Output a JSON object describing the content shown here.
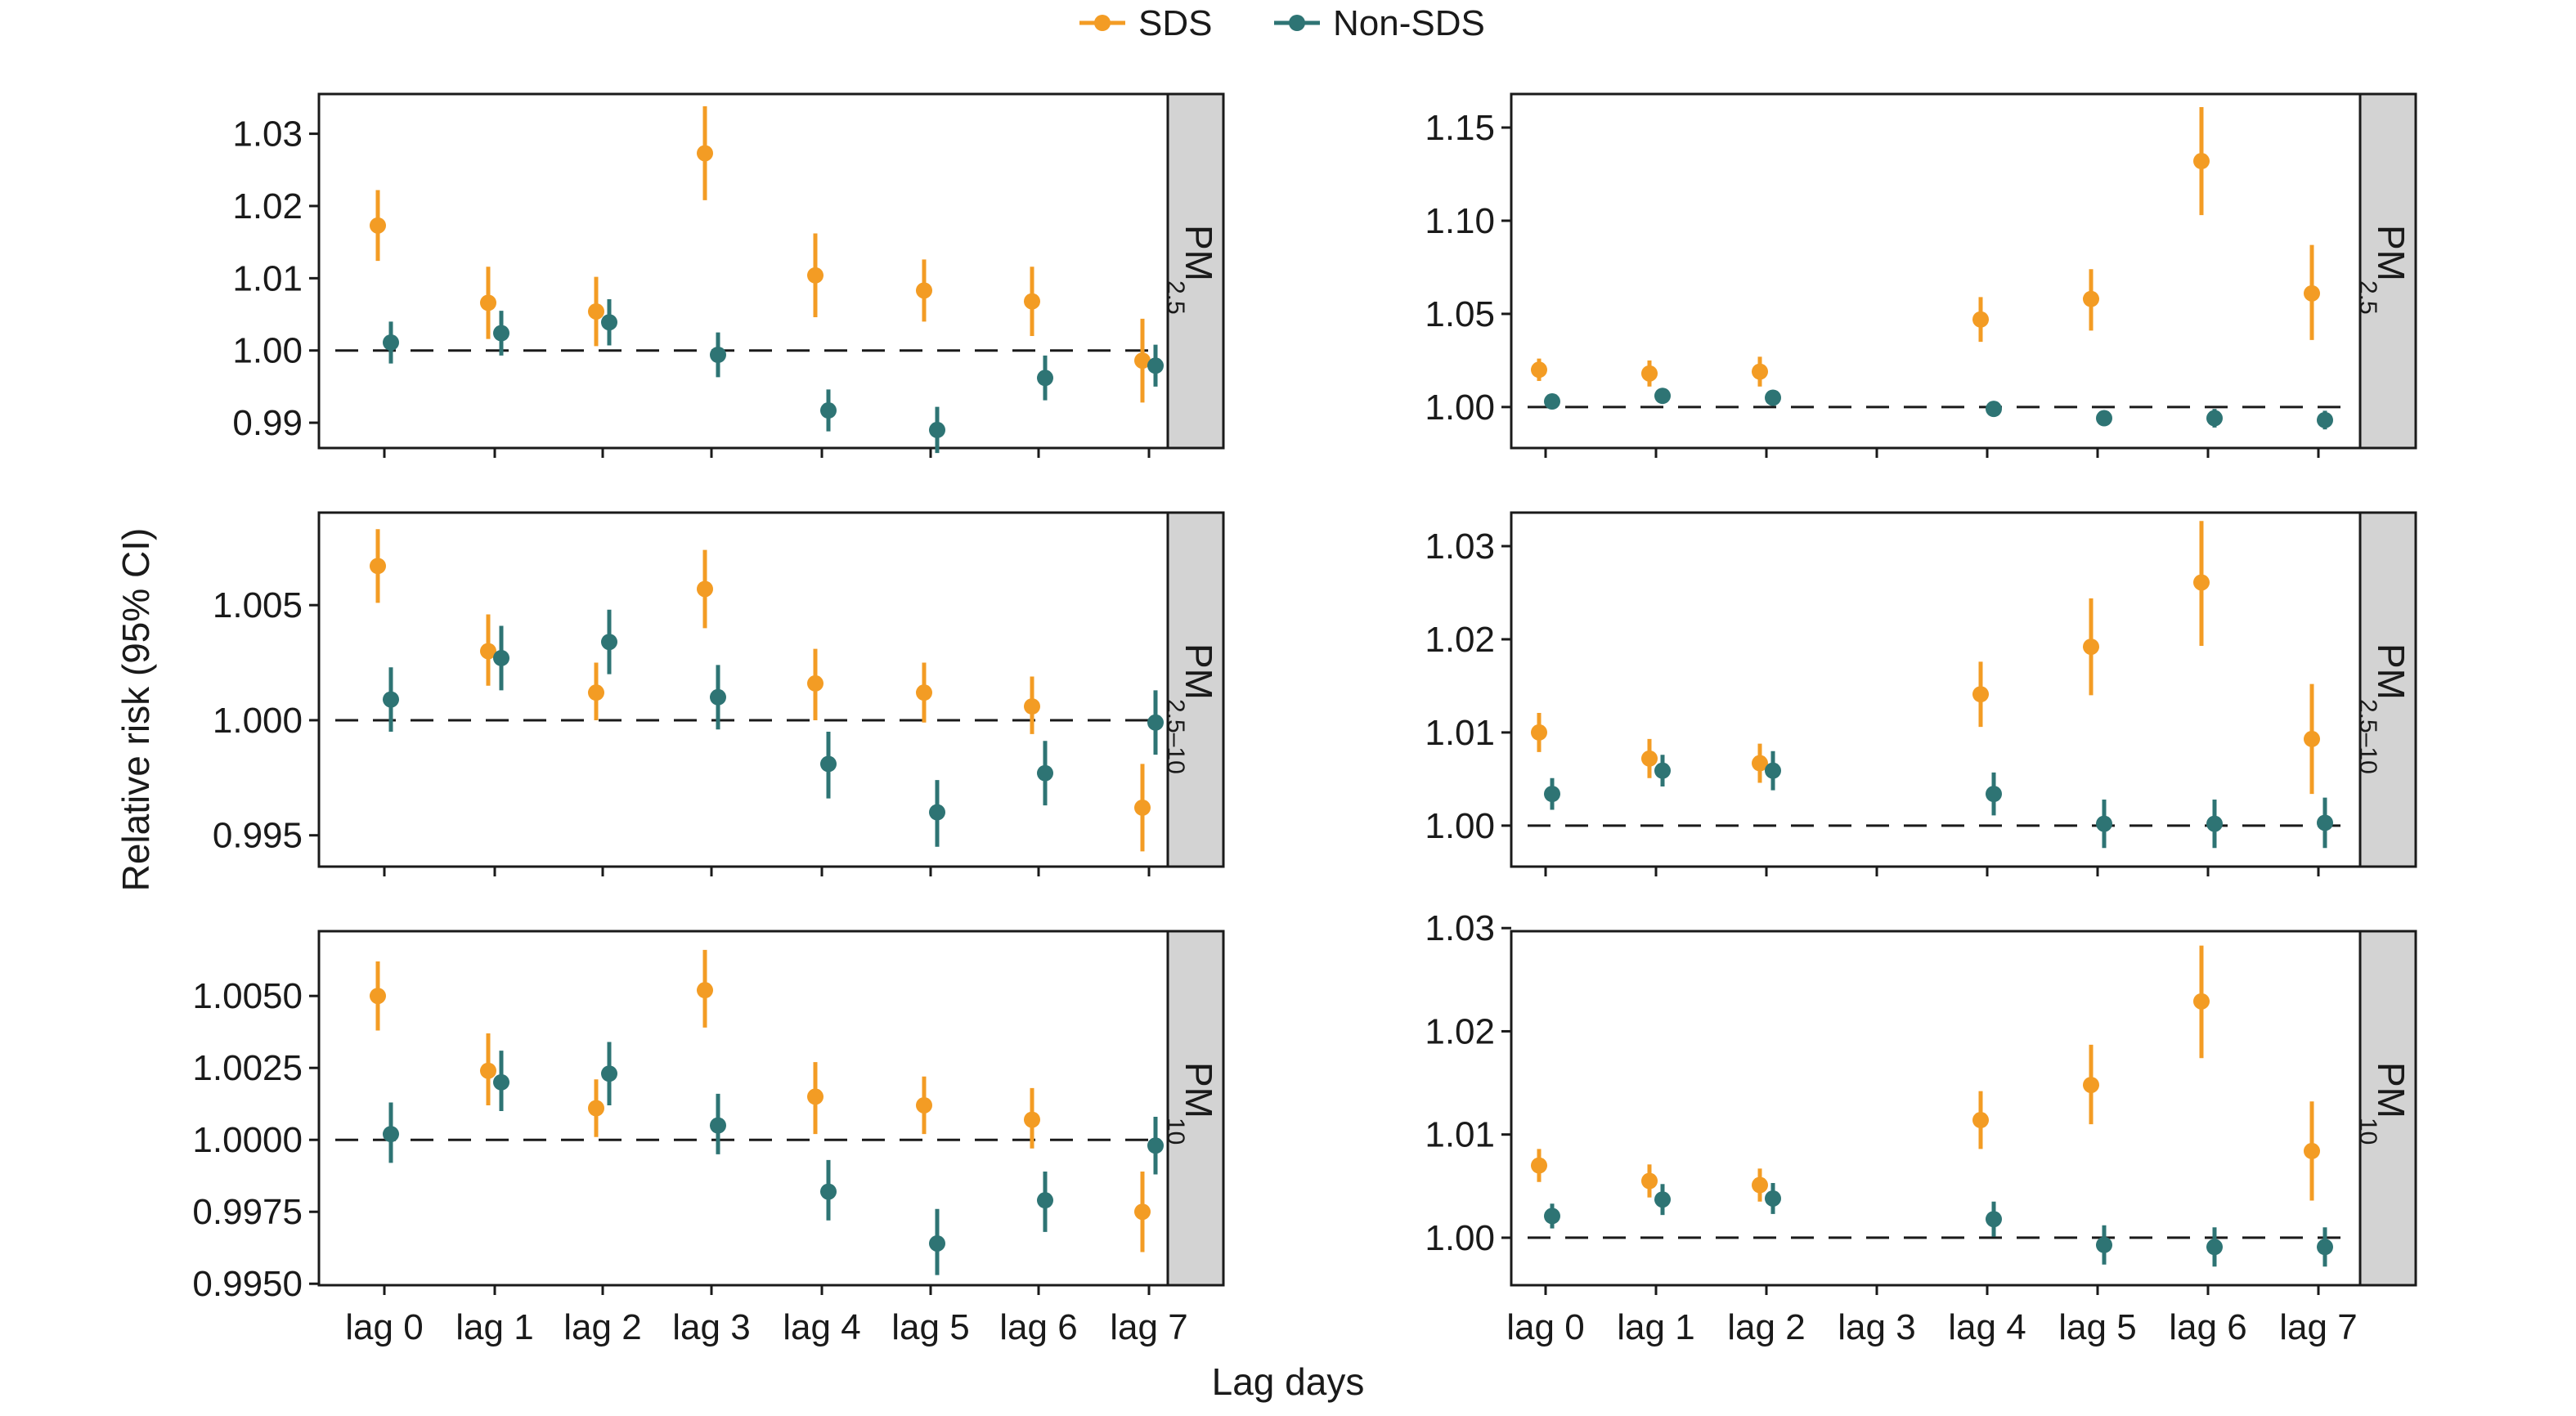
{
  "legend": [
    {
      "label": "SDS",
      "color": "#F39C24"
    },
    {
      "label": "Non-SDS",
      "color": "#2E7474"
    }
  ],
  "axis_titles": {
    "x": "Lag days",
    "y": "Relative risk (95% CI)"
  },
  "chart_data": [
    {
      "type": "scatter",
      "pollutant": {
        "main": "PM",
        "sub": "2.5"
      },
      "categories": [
        "lag 0",
        "lag 1",
        "lag 2",
        "lag 3",
        "lag 4",
        "lag 5",
        "lag 6",
        "lag 7"
      ],
      "ylim": [
        0.9865,
        1.0355
      ],
      "yticks": [
        0.99,
        1.0,
        1.01,
        1.02,
        1.03
      ],
      "yticklabels": [
        "0.99",
        "1.00",
        "1.01",
        "1.02",
        "1.03"
      ],
      "reference_line": 1.0,
      "show_xticklabels": true,
      "series": [
        {
          "name": "SDS",
          "color": "#F39C24",
          "estimate": [
            1.0173,
            1.0066,
            1.0054,
            1.0273,
            1.0104,
            1.0083,
            1.0068,
            0.9986
          ],
          "lower": [
            1.0124,
            1.0016,
            1.0006,
            1.0208,
            1.0046,
            1.004,
            1.002,
            0.9928
          ],
          "upper": [
            1.0222,
            1.0116,
            1.0102,
            1.0338,
            1.0162,
            1.0126,
            1.0116,
            1.0044
          ]
        },
        {
          "name": "Non-SDS",
          "color": "#2E7474",
          "estimate": [
            1.0011,
            1.0024,
            1.0039,
            0.9994,
            0.9917,
            0.989,
            0.9962,
            0.9979
          ],
          "lower": [
            0.9982,
            0.9993,
            1.0007,
            0.9963,
            0.9888,
            0.9858,
            0.9931,
            0.995
          ],
          "upper": [
            1.004,
            1.0055,
            1.0071,
            1.0025,
            0.9946,
            0.9922,
            0.9993,
            1.0008
          ]
        }
      ]
    },
    {
      "type": "scatter",
      "pollutant": {
        "main": "PM",
        "sub": "2.5"
      },
      "categories": [
        "lag 0",
        "lag 1",
        "lag 2",
        "lag 3",
        "lag 4",
        "lag 5",
        "lag 6",
        "lag 7"
      ],
      "ylim": [
        0.978,
        1.168
      ],
      "yticks": [
        1.0,
        1.05,
        1.1,
        1.15
      ],
      "yticklabels": [
        "1.00",
        "1.05",
        "1.10",
        "1.15"
      ],
      "reference_line": 1.0,
      "show_xticklabels": true,
      "series": [
        {
          "name": "SDS",
          "color": "#F39C24",
          "estimate": [
            1.02,
            1.018,
            1.019,
            1.047,
            1.058,
            1.132,
            1.061
          ],
          "lower": [
            1.014,
            1.011,
            1.011,
            1.035,
            1.041,
            1.103,
            1.036
          ],
          "upper": [
            1.026,
            1.025,
            1.027,
            1.059,
            1.074,
            1.161,
            1.087
          ],
          "x_index": [
            0,
            1,
            2,
            4,
            5,
            6,
            7
          ]
        },
        {
          "name": "Non-SDS",
          "color": "#2E7474",
          "estimate": [
            1.003,
            1.006,
            1.005,
            0.999,
            0.994,
            0.994,
            0.993
          ],
          "lower": [
            1.0,
            1.003,
            1.002,
            0.996,
            0.99,
            0.989,
            0.988
          ],
          "upper": [
            1.006,
            1.009,
            1.008,
            1.003,
            0.998,
            0.999,
            0.998
          ],
          "x_index": [
            0,
            1,
            2,
            4,
            5,
            6,
            7
          ]
        }
      ]
    },
    {
      "type": "scatter",
      "pollutant": {
        "main": "PM",
        "sub": "2.5–10"
      },
      "categories": [
        "lag 0",
        "lag 1",
        "lag 2",
        "lag 3",
        "lag 4",
        "lag 5",
        "lag 6",
        "lag 7"
      ],
      "ylim": [
        0.99364,
        1.00902
      ],
      "yticks": [
        0.995,
        1.0,
        1.005
      ],
      "yticklabels": [
        "0.995",
        "1.000",
        "1.005"
      ],
      "reference_line": 1.0,
      "show_xticklabels": true,
      "series": [
        {
          "name": "SDS",
          "color": "#F39C24",
          "estimate": [
            1.0067,
            1.003,
            1.0012,
            1.0057,
            1.0016,
            1.0012,
            1.0006,
            0.9962
          ],
          "lower": [
            1.0051,
            1.0015,
            1.0,
            1.004,
            1.0,
            0.9999,
            0.9994,
            0.9943
          ],
          "upper": [
            1.0083,
            1.0046,
            1.0025,
            1.0074,
            1.0031,
            1.0025,
            1.0019,
            0.9981
          ]
        },
        {
          "name": "Non-SDS",
          "color": "#2E7474",
          "estimate": [
            1.0009,
            1.0027,
            1.0034,
            1.001,
            0.9981,
            0.996,
            0.9977,
            0.9999
          ],
          "lower": [
            0.9995,
            1.0013,
            1.002,
            0.9996,
            0.9966,
            0.9945,
            0.9963,
            0.9985
          ],
          "upper": [
            1.0023,
            1.0041,
            1.0048,
            1.0024,
            0.9995,
            0.9974,
            0.9991,
            1.0013
          ]
        }
      ]
    },
    {
      "type": "scatter",
      "pollutant": {
        "main": "PM",
        "sub": "2.5–10"
      },
      "categories": [
        "lag 0",
        "lag 1",
        "lag 2",
        "lag 3",
        "lag 4",
        "lag 5",
        "lag 6",
        "lag 7"
      ],
      "ylim": [
        0.9956,
        1.0336
      ],
      "yticks": [
        1.0,
        1.01,
        1.02,
        1.03
      ],
      "yticklabels": [
        "1.00",
        "1.01",
        "1.02",
        "1.03"
      ],
      "reference_line": 1.0,
      "show_xticklabels": true,
      "series": [
        {
          "name": "SDS",
          "color": "#F39C24",
          "estimate": [
            1.01,
            1.0072,
            1.0067,
            1.0141,
            1.0192,
            1.0261,
            1.0093
          ],
          "lower": [
            1.0079,
            1.0051,
            1.0046,
            1.0106,
            1.014,
            1.0193,
            1.0034
          ],
          "upper": [
            1.0121,
            1.0093,
            1.0088,
            1.0176,
            1.0244,
            1.0327,
            1.0152
          ],
          "x_index": [
            0,
            1,
            2,
            4,
            5,
            6,
            7
          ]
        },
        {
          "name": "Non-SDS",
          "color": "#2E7474",
          "estimate": [
            1.0034,
            1.0059,
            1.0059,
            1.0034,
            1.0002,
            1.0002,
            1.0003
          ],
          "lower": [
            1.0017,
            1.0042,
            1.0038,
            1.0011,
            0.9976,
            0.9976,
            0.9976
          ],
          "upper": [
            1.0051,
            1.0076,
            1.008,
            1.0057,
            1.0028,
            1.0028,
            1.003
          ],
          "x_index": [
            0,
            1,
            2,
            4,
            5,
            6,
            7
          ]
        }
      ]
    },
    {
      "type": "scatter",
      "pollutant": {
        "main": "PM",
        "sub": "10"
      },
      "categories": [
        "lag 0",
        "lag 1",
        "lag 2",
        "lag 3",
        "lag 4",
        "lag 5",
        "lag 6",
        "lag 7"
      ],
      "ylim": [
        0.99495,
        1.00725
      ],
      "yticks": [
        0.995,
        0.9975,
        1.0,
        1.0025,
        1.005
      ],
      "yticklabels": [
        "0.9950",
        "0.9975",
        "1.0000",
        "1.0025",
        "1.0050"
      ],
      "reference_line": 1.0,
      "show_xticklabels": true,
      "series": [
        {
          "name": "SDS",
          "color": "#F39C24",
          "estimate": [
            1.005,
            1.0024,
            1.0011,
            1.0052,
            1.0015,
            1.0012,
            1.0007,
            0.9975
          ],
          "lower": [
            1.0038,
            1.0012,
            1.0001,
            1.0039,
            1.0002,
            1.0002,
            0.9997,
            0.9961
          ],
          "upper": [
            1.0062,
            1.0037,
            1.0021,
            1.0066,
            1.0027,
            1.0022,
            1.0018,
            0.9989
          ]
        },
        {
          "name": "Non-SDS",
          "color": "#2E7474",
          "estimate": [
            1.0002,
            1.002,
            1.0023,
            1.0005,
            0.9982,
            0.9964,
            0.9979,
            0.9998
          ],
          "lower": [
            0.9992,
            1.001,
            1.0012,
            0.9995,
            0.9972,
            0.9953,
            0.9968,
            0.9988
          ],
          "upper": [
            1.0013,
            1.0031,
            1.0034,
            1.0016,
            0.9993,
            0.9976,
            0.9989,
            1.0008
          ]
        }
      ]
    },
    {
      "type": "scatter",
      "pollutant": {
        "main": "PM",
        "sub": "10"
      },
      "categories": [
        "lag 0",
        "lag 1",
        "lag 2",
        "lag 3",
        "lag 4",
        "lag 5",
        "lag 6",
        "lag 7"
      ],
      "ylim": [
        0.9954,
        1.0297
      ],
      "yticks": [
        1.0,
        1.01,
        1.02,
        1.03
      ],
      "yticklabels": [
        "1.00",
        "1.01",
        "1.02",
        "1.03"
      ],
      "reference_line": 1.0,
      "show_xticklabels": true,
      "series": [
        {
          "name": "SDS",
          "color": "#F39C24",
          "estimate": [
            1.007,
            1.0055,
            1.0051,
            1.0114,
            1.0148,
            1.0229,
            1.0084
          ],
          "lower": [
            1.0054,
            1.0039,
            1.0035,
            1.0086,
            1.011,
            1.0174,
            1.0036
          ],
          "upper": [
            1.0086,
            1.0071,
            1.0067,
            1.0142,
            1.0187,
            1.0283,
            1.0132
          ],
          "x_index": [
            0,
            1,
            2,
            4,
            5,
            6,
            7
          ]
        },
        {
          "name": "Non-SDS",
          "color": "#2E7474",
          "estimate": [
            1.0021,
            1.0037,
            1.0038,
            1.0018,
            0.9993,
            0.9991,
            0.9991
          ],
          "lower": [
            1.0009,
            1.0022,
            1.0023,
            1.0001,
            0.9974,
            0.9972,
            0.9972
          ],
          "upper": [
            1.0033,
            1.0052,
            1.0053,
            1.0035,
            1.0012,
            1.001,
            1.001
          ],
          "x_index": [
            0,
            1,
            2,
            4,
            5,
            6,
            7
          ]
        }
      ]
    }
  ]
}
